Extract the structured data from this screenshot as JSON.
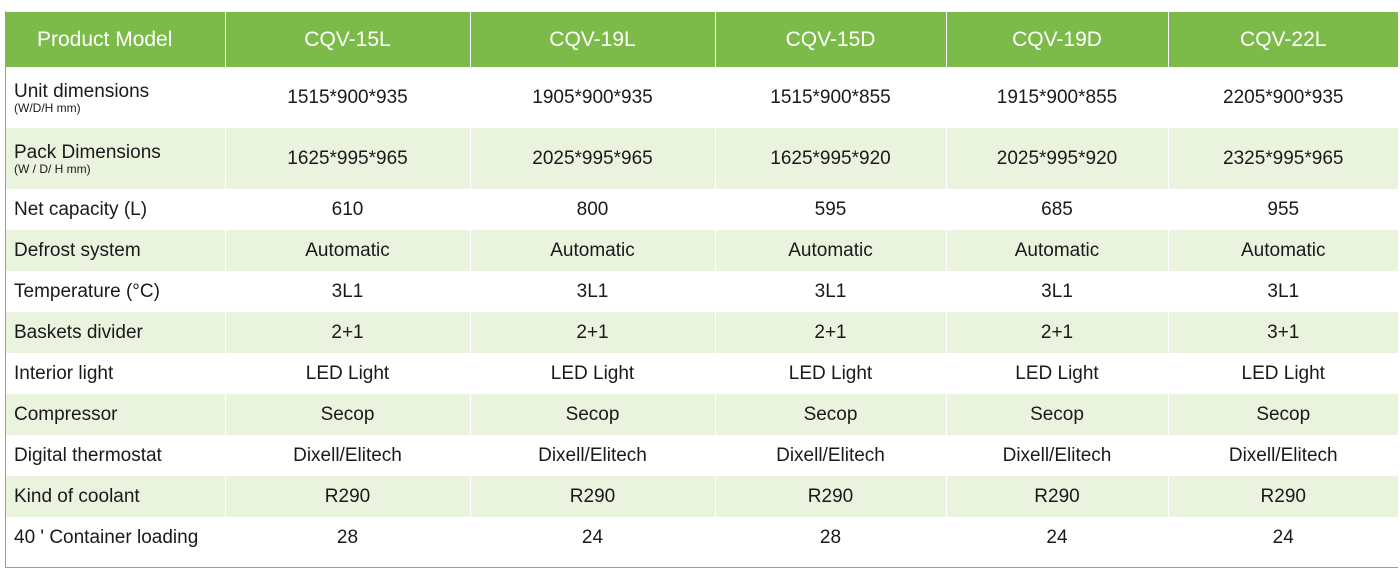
{
  "header": {
    "label": "Product Model",
    "models": [
      "CQV-15L",
      "CQV-19L",
      "CQV-15D",
      "CQV-19D",
      "CQV-22L"
    ]
  },
  "rows": [
    {
      "label": "Unit dimensions",
      "sublabel": "(W/D/H mm)",
      "values": [
        "1515*900*935",
        "1905*900*935",
        "1515*900*855",
        "1915*900*855",
        "2205*900*935"
      ]
    },
    {
      "label": "Pack Dimensions",
      "sublabel": "(W / D/ H mm)",
      "values": [
        "1625*995*965",
        "2025*995*965",
        "1625*995*920",
        "2025*995*920",
        "2325*995*965"
      ]
    },
    {
      "label": "Net capacity (L)",
      "values": [
        "610",
        "800",
        "595",
        "685",
        "955"
      ]
    },
    {
      "label": "Defrost system",
      "values": [
        "Automatic",
        "Automatic",
        "Automatic",
        "Automatic",
        "Automatic"
      ]
    },
    {
      "label": "Temperature (°C)",
      "values": [
        "3L1",
        "3L1",
        "3L1",
        "3L1",
        "3L1"
      ]
    },
    {
      "label": "Baskets divider",
      "values": [
        "2+1",
        "2+1",
        "2+1",
        "2+1",
        "3+1"
      ]
    },
    {
      "label": "Interior light",
      "values": [
        "LED Light",
        "LED Light",
        "LED Light",
        "LED Light",
        "LED Light"
      ]
    },
    {
      "label": "Compressor",
      "values": [
        "Secop",
        "Secop",
        "Secop",
        "Secop",
        "Secop"
      ]
    },
    {
      "label": "Digital thermostat",
      "values": [
        "Dixell/Elitech",
        "Dixell/Elitech",
        "Dixell/Elitech",
        "Dixell/Elitech",
        "Dixell/Elitech"
      ]
    },
    {
      "label": "Kind of coolant",
      "values": [
        "R290",
        "R290",
        "R290",
        "R290",
        "R290"
      ]
    },
    {
      "label": "40 ' Container loading",
      "values": [
        "28",
        "24",
        "28",
        "24",
        "24"
      ]
    }
  ],
  "colors": {
    "header_bg": "#7cbb4a",
    "stripe_bg": "#e9f3dd"
  }
}
